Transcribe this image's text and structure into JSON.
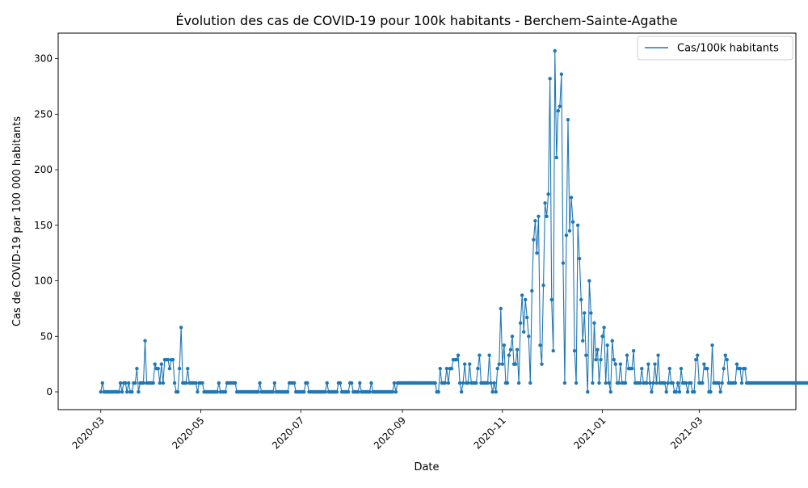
{
  "chart_data": {
    "type": "line",
    "title": "Évolution des cas de COVID-19 pour 100k habitants - Berchem-Sainte-Agathe",
    "xlabel": "Date",
    "ylabel": "Cas de COVID-19 par 100 000 habitants",
    "xlim": [
      "2020-02-04",
      "2021-04-29"
    ],
    "ylim": [
      -16,
      323
    ],
    "x_ticks": [
      "2020-03",
      "2020-05",
      "2020-07",
      "2020-09",
      "2020-11",
      "2021-01",
      "2021-03"
    ],
    "y_ticks": [
      0,
      50,
      100,
      150,
      200,
      250,
      300
    ],
    "grid": false,
    "legend": {
      "position": "top-right",
      "entries": [
        "Cas/100k habitants"
      ]
    },
    "colors": {
      "series": "#1f77b4"
    },
    "markers": true,
    "series": [
      {
        "name": "Cas/100k habitants",
        "start_date": "2020-03-01",
        "end_date": "2021-04-02",
        "values": [
          0,
          8,
          0,
          0,
          0,
          0,
          0,
          0,
          0,
          0,
          0,
          0,
          8,
          0,
          8,
          8,
          0,
          8,
          0,
          0,
          8,
          8,
          21,
          0,
          8,
          8,
          8,
          46,
          8,
          8,
          8,
          8,
          8,
          25,
          21,
          21,
          8,
          25,
          8,
          29,
          29,
          29,
          21,
          29,
          29,
          8,
          0,
          0,
          21,
          58,
          8,
          8,
          8,
          21,
          8,
          8,
          8,
          8,
          8,
          0,
          8,
          8,
          8,
          0,
          0,
          0,
          0,
          0,
          0,
          0,
          0,
          0,
          8,
          0,
          0,
          0,
          0,
          8,
          8,
          8,
          8,
          8,
          8,
          0,
          0,
          0,
          0,
          0,
          0,
          0,
          0,
          0,
          0,
          0,
          0,
          0,
          0,
          8,
          0,
          0,
          0,
          0,
          0,
          0,
          0,
          0,
          8,
          0,
          0,
          0,
          0,
          0,
          0,
          0,
          0,
          8,
          8,
          8,
          8,
          0,
          0,
          0,
          0,
          0,
          0,
          8,
          8,
          0,
          0,
          0,
          0,
          0,
          0,
          0,
          0,
          0,
          0,
          0,
          8,
          0,
          0,
          0,
          0,
          0,
          0,
          8,
          8,
          0,
          0,
          0,
          0,
          0,
          8,
          8,
          0,
          0,
          0,
          0,
          8,
          0,
          0,
          0,
          0,
          0,
          0,
          8,
          0,
          0,
          0,
          0,
          0,
          0,
          0,
          0,
          0,
          0,
          0,
          0,
          0,
          8,
          0,
          8,
          8,
          8,
          8,
          8,
          8,
          8,
          8,
          8,
          8,
          8,
          8,
          8,
          8,
          8,
          8,
          8,
          8,
          8,
          8,
          8,
          8,
          8,
          8,
          0,
          0,
          21,
          8,
          8,
          8,
          21,
          8,
          21,
          21,
          29,
          29,
          29,
          33,
          8,
          0,
          8,
          25,
          8,
          8,
          25,
          8,
          8,
          8,
          8,
          21,
          33,
          8,
          8,
          8,
          8,
          8,
          33,
          8,
          0,
          8,
          0,
          21,
          25,
          75,
          25,
          42,
          8,
          8,
          33,
          38,
          50,
          25,
          25,
          38,
          8,
          62,
          87,
          54,
          83,
          67,
          50,
          8,
          91,
          137,
          154,
          125,
          158,
          42,
          25,
          96,
          170,
          158,
          178,
          282,
          83,
          37,
          307,
          211,
          253,
          257,
          286,
          116,
          8,
          141,
          245,
          145,
          175,
          153,
          37,
          8,
          150,
          120,
          83,
          46,
          71,
          33,
          0,
          100,
          71,
          8,
          62,
          29,
          38,
          8,
          29,
          50,
          58,
          8,
          42,
          8,
          0,
          46,
          29,
          25,
          8,
          8,
          25,
          8,
          8,
          8,
          33,
          21,
          21,
          21,
          37,
          8,
          8,
          8,
          8,
          21,
          8,
          8,
          8,
          25,
          8,
          0,
          8,
          25,
          8,
          33,
          8,
          8,
          8,
          8,
          0,
          8,
          21,
          8,
          8,
          0,
          0,
          8,
          0,
          21,
          8,
          8,
          8,
          0,
          8,
          8,
          0,
          0,
          29,
          33,
          8,
          8,
          8,
          25,
          21,
          21,
          0,
          0,
          42,
          8,
          8,
          8,
          8,
          0,
          8,
          21,
          33,
          29,
          8,
          8,
          8,
          8,
          8,
          25,
          21,
          21,
          8,
          21,
          21,
          8,
          8,
          8,
          8,
          8,
          8,
          8,
          8,
          8,
          8,
          8,
          8,
          8,
          8,
          8,
          8,
          8,
          8,
          8,
          8,
          8,
          8,
          8,
          8,
          8,
          8,
          8,
          8,
          8,
          8,
          8,
          8,
          8,
          8,
          8,
          8,
          8,
          8,
          8,
          8,
          8,
          8,
          8,
          8,
          8,
          8,
          8,
          8,
          8,
          8,
          0
        ]
      }
    ]
  }
}
